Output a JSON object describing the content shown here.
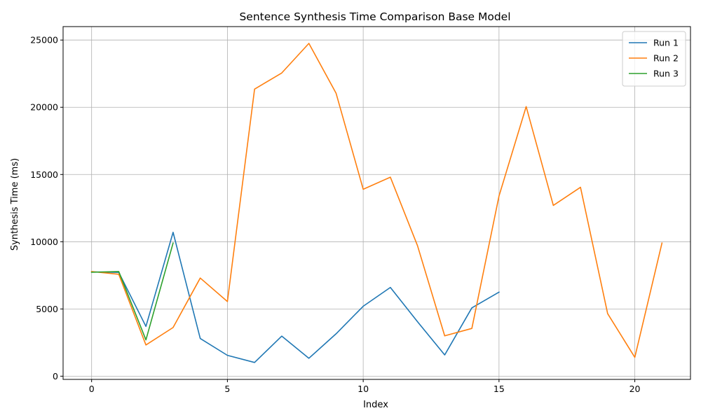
{
  "chart_data": {
    "type": "line",
    "title": "Sentence Synthesis Time Comparison Base Model",
    "xlabel": "Index",
    "ylabel": "Synthesis Time (ms)",
    "xlim": [
      -1.05,
      22.05
    ],
    "ylim": [
      -240,
      26000
    ],
    "xticks": [
      0,
      5,
      10,
      15,
      20
    ],
    "yticks": [
      0,
      5000,
      10000,
      15000,
      20000,
      25000
    ],
    "grid": true,
    "legend_position": "top-right",
    "series": [
      {
        "name": "Run 1",
        "color": "#1f77b4",
        "x": [
          0,
          1,
          2,
          3,
          4,
          5,
          6,
          7,
          8,
          9,
          10,
          11,
          12,
          13,
          14,
          15
        ],
        "values": [
          7750,
          7720,
          3700,
          10700,
          2800,
          1550,
          1020,
          2980,
          1330,
          3150,
          5200,
          6600,
          4050,
          1580,
          5080,
          6250
        ]
      },
      {
        "name": "Run 2",
        "color": "#ff7f0e",
        "x": [
          0,
          1,
          2,
          3,
          4,
          5,
          6,
          7,
          8,
          9,
          10,
          11,
          12,
          13,
          14,
          15,
          16,
          17,
          18,
          19,
          20,
          21
        ],
        "values": [
          7780,
          7580,
          2320,
          3620,
          7300,
          5550,
          21350,
          22550,
          24750,
          21050,
          13900,
          14800,
          9700,
          3000,
          3550,
          13400,
          20050,
          12700,
          14050,
          4650,
          1400,
          9900
        ]
      },
      {
        "name": "Run 3",
        "color": "#2ca02c",
        "x": [
          0,
          1,
          2,
          3
        ],
        "values": [
          7730,
          7780,
          2700,
          9900
        ]
      }
    ]
  }
}
